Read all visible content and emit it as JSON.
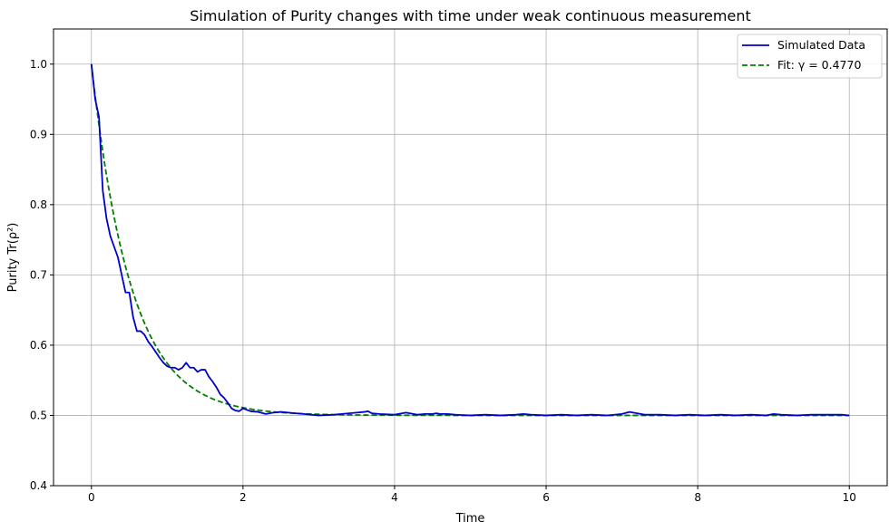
{
  "chart_data": {
    "type": "line",
    "title": "Simulation of Purity changes with time under weak continuous measurement",
    "xlabel": "Time",
    "ylabel": "Purity Tr(ρ²)",
    "xlim": [
      -0.5,
      10.5
    ],
    "ylim": [
      0.4,
      1.05
    ],
    "xticks": [
      0,
      2,
      4,
      6,
      8,
      10
    ],
    "xtick_labels": [
      "0",
      "2",
      "4",
      "6",
      "8",
      "10"
    ],
    "yticks": [
      0.4,
      0.5,
      0.6,
      0.7,
      0.8,
      0.9,
      1.0
    ],
    "ytick_labels": [
      "0.4",
      "0.5",
      "0.6",
      "0.7",
      "0.8",
      "0.9",
      "1.0"
    ],
    "grid": true,
    "legend_position": "top-right",
    "series": [
      {
        "name": "Simulated Data",
        "color": "#0000cc",
        "style": "solid",
        "x": [
          0,
          0.05,
          0.1,
          0.15,
          0.2,
          0.25,
          0.3,
          0.35,
          0.4,
          0.45,
          0.5,
          0.55,
          0.6,
          0.65,
          0.7,
          0.75,
          0.8,
          0.85,
          0.9,
          0.95,
          1.0,
          1.05,
          1.1,
          1.15,
          1.2,
          1.25,
          1.3,
          1.35,
          1.4,
          1.45,
          1.5,
          1.55,
          1.6,
          1.65,
          1.7,
          1.75,
          1.8,
          1.85,
          1.9,
          1.95,
          2.0,
          2.1,
          2.2,
          2.3,
          2.4,
          2.5,
          2.6,
          2.7,
          2.8,
          2.9,
          3.0,
          3.2,
          3.4,
          3.5,
          3.6,
          3.65,
          3.7,
          3.8,
          4.0,
          4.1,
          4.15,
          4.2,
          4.25,
          4.3,
          4.4,
          4.5,
          4.55,
          4.6,
          4.7,
          4.8,
          5.0,
          5.2,
          5.4,
          5.6,
          5.7,
          5.8,
          6.0,
          6.2,
          6.4,
          6.6,
          6.8,
          7.0,
          7.1,
          7.2,
          7.3,
          7.5,
          7.7,
          7.9,
          8.1,
          8.3,
          8.5,
          8.7,
          8.9,
          9.0,
          9.1,
          9.3,
          9.5,
          9.7,
          9.9,
          10.0
        ],
        "values": [
          1.0,
          0.95,
          0.925,
          0.82,
          0.78,
          0.755,
          0.74,
          0.725,
          0.7,
          0.675,
          0.675,
          0.64,
          0.62,
          0.62,
          0.615,
          0.605,
          0.598,
          0.59,
          0.582,
          0.575,
          0.57,
          0.568,
          0.568,
          0.565,
          0.568,
          0.575,
          0.568,
          0.568,
          0.562,
          0.565,
          0.565,
          0.555,
          0.548,
          0.54,
          0.53,
          0.525,
          0.518,
          0.51,
          0.507,
          0.506,
          0.51,
          0.506,
          0.505,
          0.502,
          0.504,
          0.505,
          0.504,
          0.503,
          0.502,
          0.501,
          0.5,
          0.501,
          0.503,
          0.504,
          0.505,
          0.506,
          0.503,
          0.502,
          0.501,
          0.503,
          0.504,
          0.503,
          0.502,
          0.501,
          0.502,
          0.502,
          0.503,
          0.502,
          0.502,
          0.501,
          0.5,
          0.501,
          0.5,
          0.501,
          0.502,
          0.501,
          0.5,
          0.501,
          0.5,
          0.501,
          0.5,
          0.502,
          0.505,
          0.503,
          0.501,
          0.501,
          0.5,
          0.501,
          0.5,
          0.501,
          0.5,
          0.501,
          0.5,
          0.502,
          0.501,
          0.5,
          0.501,
          0.501,
          0.501,
          0.5
        ]
      },
      {
        "name": "Fit: γ = 0.4770",
        "color": "#008000",
        "style": "dashed",
        "gamma": 0.477,
        "model": "0.5 + 0.5*exp(-4*gamma*t)"
      }
    ]
  }
}
